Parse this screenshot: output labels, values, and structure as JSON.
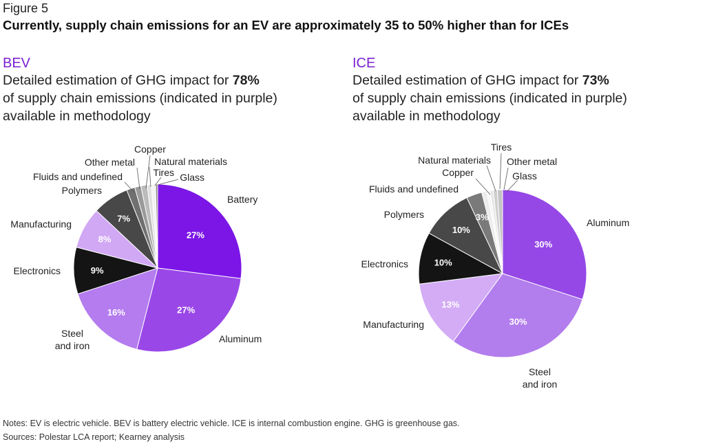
{
  "figure_label": "Figure 5",
  "figure_title": "Currently, supply chain emissions for an EV are approximately 35 to 50% higher than for ICEs",
  "notes": "Notes: EV is electric vehicle. BEV is battery electric vehicle. ICE is internal combustion engine. GHG is greenhouse gas.",
  "sources": "Sources: Polestar LCA report; Kearney analysis",
  "panels": [
    {
      "name": "BEV",
      "desc_before": "Detailed estimation of GHG impact for ",
      "desc_bold": "78%",
      "desc_line2": "of supply chain emissions (indicated in purple)",
      "desc_line3": "available in methodology"
    },
    {
      "name": "ICE",
      "desc_before": "Detailed estimation of GHG impact for ",
      "desc_bold": "73%",
      "desc_line2": "of supply chain emissions (indicated in purple)",
      "desc_line3": "available in methodology"
    }
  ],
  "chart_data": [
    {
      "type": "pie",
      "title": "BEV",
      "slices": [
        {
          "label": "Battery",
          "value": 27,
          "value_label": "27%",
          "color": "#7b16e6"
        },
        {
          "label": "Aluminum",
          "value": 27,
          "value_label": "27%",
          "color": "#9a47e8"
        },
        {
          "label": "Steel\nand iron",
          "value": 16,
          "value_label": "16%",
          "color": "#b47cee"
        },
        {
          "label": "Electronics",
          "value": 9,
          "value_label": "9%",
          "color": "#141414"
        },
        {
          "label": "Manufacturing",
          "value": 8,
          "value_label": "8%",
          "color": "#d1a8f4"
        },
        {
          "label": "Polymers",
          "value": 7,
          "value_label": "7%",
          "color": "#484848"
        },
        {
          "label": "Fluids and undefined",
          "value": 1.6,
          "value_label": "",
          "color": "#707070"
        },
        {
          "label": "Other metal",
          "value": 1.2,
          "value_label": "",
          "color": "#9a9a9a"
        },
        {
          "label": "Copper",
          "value": 1.2,
          "value_label": "",
          "color": "#bcbcbc"
        },
        {
          "label": "Natural materials",
          "value": 0.8,
          "value_label": "",
          "color": "#e0e0e0"
        },
        {
          "label": "Tires",
          "value": 0.8,
          "value_label": "",
          "color": "#f2f2f2"
        },
        {
          "label": "Glass",
          "value": 0.4,
          "value_label": "",
          "color": "#8a8a8a"
        }
      ]
    },
    {
      "type": "pie",
      "title": "ICE",
      "slices": [
        {
          "label": "Aluminum",
          "value": 30,
          "value_label": "30%",
          "color": "#9548e6"
        },
        {
          "label": "Steel\nand iron",
          "value": 30,
          "value_label": "30%",
          "color": "#b27ded"
        },
        {
          "label": "Manufacturing",
          "value": 13,
          "value_label": "13%",
          "color": "#d3acf5"
        },
        {
          "label": "Electronics",
          "value": 10,
          "value_label": "10%",
          "color": "#141414"
        },
        {
          "label": "Polymers",
          "value": 10,
          "value_label": "10%",
          "color": "#484848"
        },
        {
          "label": "Fluids and undefined",
          "value": 3,
          "value_label": "3%",
          "color": "#7a7a7a"
        },
        {
          "label": "Copper",
          "value": 1,
          "value_label": "",
          "color": "#ececec"
        },
        {
          "label": "Natural materials",
          "value": 0.6,
          "value_label": "",
          "color": "#f6f6f6"
        },
        {
          "label": "Tires",
          "value": 0.6,
          "value_label": "",
          "color": "#e6e6e6"
        },
        {
          "label": "Other metal",
          "value": 0.8,
          "value_label": "",
          "color": "#cfcfcf"
        },
        {
          "label": "Glass",
          "value": 1,
          "value_label": "",
          "color": "#c4c4c4"
        }
      ]
    }
  ]
}
